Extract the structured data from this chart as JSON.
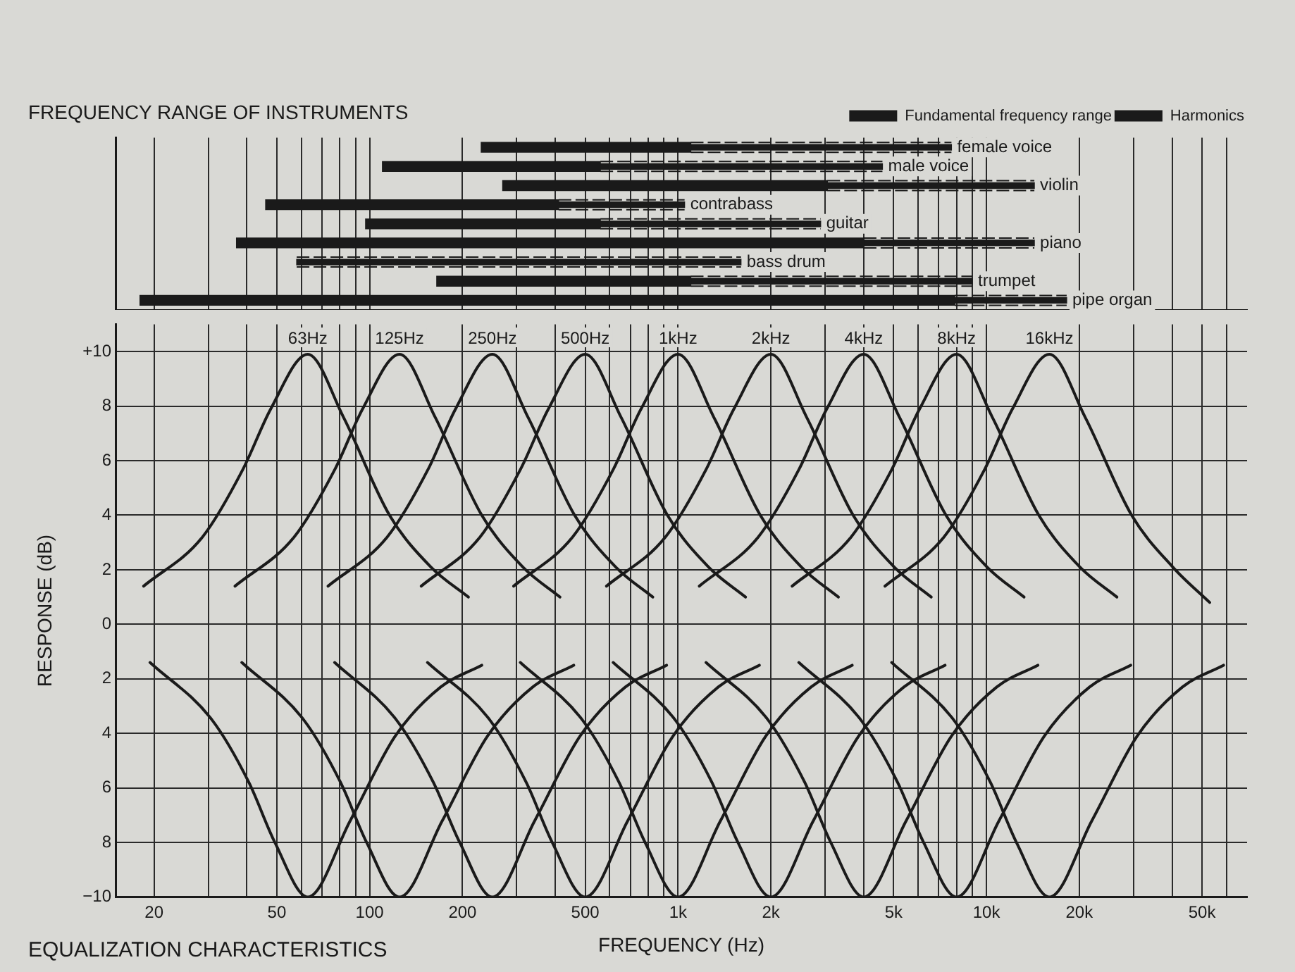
{
  "chart_data": [
    {
      "type": "bar",
      "orientation": "horizontal",
      "title": "FREQUENCY RANGE OF INSTRUMENTS",
      "legend": "top right",
      "grid": "x",
      "log": "x",
      "tick_labels": false,
      "categories": [
        "female voice",
        "male voice",
        "violin",
        "contrabass",
        "guitar",
        "piano",
        "bass drum",
        "trumpet",
        "pipe organ"
      ],
      "series": [
        {
          "name": "Fundamental frequency range",
          "color": "#1a1a1a",
          "base": [
            230,
            110,
            270,
            46,
            97,
            37,
            null,
            165,
            18
          ],
          "values": [
            870,
            450,
            2780,
            364,
            463,
            3963,
            null,
            935,
            7882
          ]
        },
        {
          "name": "Harmonics",
          "color": "#1a1a1a",
          "line_style": "dotted",
          "base": [
            1100,
            560,
            3050,
            410,
            560,
            4000,
            58,
            1100,
            7900
          ],
          "values": [
            6600,
            4040,
            11250,
            640,
            2340,
            10300,
            1542,
            7900,
            10300
          ]
        }
      ],
      "xlim": [
        15,
        70000
      ],
      "xticks": [
        20,
        30,
        40,
        50,
        60,
        70,
        80,
        90,
        100,
        200,
        300,
        400,
        500,
        600,
        700,
        800,
        900,
        1000,
        2000,
        3000,
        4000,
        5000,
        6000,
        7000,
        8000,
        9000,
        10000,
        20000,
        30000,
        40000,
        50000,
        60000
      ]
    },
    {
      "type": "line",
      "title": "EQUALIZATION CHARACTERISTICS",
      "xlabel": "FREQUENCY (Hz)",
      "ylabel": "RESPONSE (dB)",
      "grid": true,
      "log": "x",
      "legend": false,
      "marker": "none",
      "line_style": "solid",
      "xlim": [
        15,
        70000
      ],
      "ylim": [
        -10,
        11
      ],
      "xticks": [
        20,
        {
          "value": 30,
          "label": null
        },
        {
          "value": 40,
          "label": null
        },
        50,
        {
          "value": 60,
          "label": null
        },
        {
          "value": 70,
          "label": null
        },
        {
          "value": 80,
          "label": null
        },
        {
          "value": 90,
          "label": null
        },
        100,
        200,
        {
          "value": 300,
          "label": null
        },
        {
          "value": 400,
          "label": null
        },
        500,
        {
          "value": 600,
          "label": null
        },
        {
          "value": 700,
          "label": null
        },
        {
          "value": 800,
          "label": null
        },
        {
          "value": 900,
          "label": null
        },
        {
          "value": 1000,
          "label": "1k"
        },
        {
          "value": 2000,
          "label": "2k"
        },
        {
          "value": 3000,
          "label": null
        },
        {
          "value": 4000,
          "label": null
        },
        {
          "value": 5000,
          "label": "5k"
        },
        {
          "value": 6000,
          "label": null
        },
        {
          "value": 7000,
          "label": null
        },
        {
          "value": 8000,
          "label": null
        },
        {
          "value": 9000,
          "label": null
        },
        {
          "value": 10000,
          "label": "10k"
        },
        {
          "value": 20000,
          "label": "20k"
        },
        {
          "value": 30000,
          "label": null
        },
        {
          "value": 40000,
          "label": null
        },
        {
          "value": 50000,
          "label": "50k"
        },
        {
          "value": 60000,
          "label": null
        }
      ],
      "yticks": [
        {
          "value": -10,
          "label": "−10"
        },
        {
          "value": -8,
          "label": "8"
        },
        {
          "value": -6,
          "label": "6"
        },
        {
          "value": -4,
          "label": "4"
        },
        {
          "value": -2,
          "label": "2"
        },
        0,
        2,
        4,
        6,
        8,
        {
          "value": 10,
          "label": "+10"
        }
      ],
      "annotations": [
        {
          "text": "63Hz",
          "x": 63,
          "y": 10
        },
        {
          "text": "125Hz",
          "x": 125,
          "y": 10
        },
        {
          "text": "250Hz",
          "x": 250,
          "y": 10
        },
        {
          "text": "500Hz",
          "x": 500,
          "y": 10
        },
        {
          "text": "1kHz",
          "x": 1000,
          "y": 10
        },
        {
          "text": "2kHz",
          "x": 2000,
          "y": 10
        },
        {
          "text": "4kHz",
          "x": 4000,
          "y": 10
        },
        {
          "text": "8kHz",
          "x": 8000,
          "y": 10
        },
        {
          "text": "16kHz",
          "x": 16000,
          "y": 10
        }
      ],
      "series": [
        {
          "color": "#1a1a1a",
          "x": [
            18.5,
            28.7,
            38.9,
            47.8,
            63,
            82.2,
            116,
            158,
            209
          ],
          "values": [
            1.4,
            3.2,
            5.7,
            7.9,
            9.9,
            7.6,
            4.0,
            2.1,
            1.0
          ]
        },
        {
          "color": "#1a1a1a",
          "x": [
            36.6,
            56.9,
            77.3,
            94.9,
            125,
            163,
            231,
            314,
            414
          ],
          "values": [
            1.4,
            3.2,
            5.7,
            7.9,
            9.9,
            7.6,
            4.0,
            2.1,
            1.0
          ]
        },
        {
          "color": "#1a1a1a",
          "x": [
            73.3,
            114,
            155,
            190,
            250,
            326,
            462,
            628,
            828
          ],
          "values": [
            1.4,
            3.2,
            5.7,
            7.9,
            9.9,
            7.6,
            4.0,
            2.1,
            1.0
          ]
        },
        {
          "color": "#1a1a1a",
          "x": [
            147,
            228,
            309,
            380,
            500,
            653,
            924,
            1256,
            1655
          ],
          "values": [
            1.4,
            3.2,
            5.7,
            7.9,
            9.9,
            7.6,
            4.0,
            2.1,
            1.0
          ]
        },
        {
          "color": "#1a1a1a",
          "x": [
            293,
            455,
            618,
            759,
            1000,
            1305,
            1848,
            2512,
            3310
          ],
          "values": [
            1.4,
            3.2,
            5.7,
            7.9,
            9.9,
            7.6,
            4.0,
            2.1,
            1.0
          ]
        },
        {
          "color": "#1a1a1a",
          "x": [
            586,
            910,
            1236,
            1518,
            2000,
            2610,
            3696,
            5024,
            6620
          ],
          "values": [
            1.4,
            3.2,
            5.7,
            7.9,
            9.9,
            7.6,
            4.0,
            2.1,
            1.0
          ]
        },
        {
          "color": "#1a1a1a",
          "x": [
            1172,
            1820,
            2472,
            3036,
            4000,
            5220,
            7392,
            10048,
            13240
          ],
          "values": [
            1.4,
            3.2,
            5.7,
            7.9,
            9.9,
            7.6,
            4.0,
            2.1,
            1.0
          ]
        },
        {
          "color": "#1a1a1a",
          "x": [
            2344,
            3640,
            4944,
            6072,
            8000,
            10440,
            14784,
            20096,
            26480
          ],
          "values": [
            1.4,
            3.2,
            5.7,
            7.9,
            9.9,
            7.6,
            4.0,
            2.1,
            1.0
          ]
        },
        {
          "color": "#1a1a1a",
          "x": [
            4688,
            7280,
            9888,
            12144,
            16000,
            20880,
            29568,
            40192,
            52960
          ],
          "values": [
            1.4,
            3.2,
            5.7,
            7.9,
            9.9,
            7.6,
            4.0,
            2.1,
            0.8
          ]
        },
        {
          "color": "#1a1a1a",
          "x": [
            19.4,
            30.8,
            40.6,
            49.3,
            63,
            86.5,
            121,
            170,
            231
          ],
          "values": [
            -1.4,
            -3.5,
            -5.8,
            -8.0,
            -10,
            -7.2,
            -4.1,
            -2.3,
            -1.5
          ]
        },
        {
          "color": "#1a1a1a",
          "x": [
            38.5,
            61.1,
            80.5,
            97.8,
            125,
            172,
            241,
            338,
            459
          ],
          "values": [
            -1.4,
            -3.5,
            -5.8,
            -8.0,
            -10,
            -7.2,
            -4.1,
            -2.3,
            -1.5
          ]
        },
        {
          "color": "#1a1a1a",
          "x": [
            77,
            122,
            161,
            196,
            250,
            343,
            481,
            675,
            918
          ],
          "values": [
            -1.4,
            -3.5,
            -5.8,
            -8.0,
            -10,
            -7.2,
            -4.1,
            -2.3,
            -1.5
          ]
        },
        {
          "color": "#1a1a1a",
          "x": [
            154,
            245,
            322,
            391,
            500,
            687,
            963,
            1350,
            1835
          ],
          "values": [
            -1.4,
            -3.5,
            -5.8,
            -8.0,
            -10,
            -7.2,
            -4.1,
            -2.3,
            -1.5
          ]
        },
        {
          "color": "#1a1a1a",
          "x": [
            308,
            489,
            644,
            782,
            1000,
            1373,
            1925,
            2700,
            3670
          ],
          "values": [
            -1.4,
            -3.5,
            -5.8,
            -8.0,
            -10,
            -7.2,
            -4.1,
            -2.3,
            -1.5
          ]
        },
        {
          "color": "#1a1a1a",
          "x": [
            616,
            978,
            1288,
            1564,
            2000,
            2746,
            3850,
            5400,
            7340
          ],
          "values": [
            -1.4,
            -3.5,
            -5.8,
            -8.0,
            -10,
            -7.2,
            -4.1,
            -2.3,
            -1.5
          ]
        },
        {
          "color": "#1a1a1a",
          "x": [
            1232,
            1956,
            2576,
            3128,
            4000,
            5492,
            7700,
            10800,
            14680
          ],
          "values": [
            -1.4,
            -3.5,
            -5.8,
            -8.0,
            -10,
            -7.2,
            -4.1,
            -2.3,
            -1.5
          ]
        },
        {
          "color": "#1a1a1a",
          "x": [
            2464,
            3912,
            5152,
            6256,
            8000,
            10984,
            15400,
            21600,
            29360
          ],
          "values": [
            -1.4,
            -3.5,
            -5.8,
            -8.0,
            -10,
            -7.2,
            -4.1,
            -2.3,
            -1.5
          ]
        },
        {
          "color": "#1a1a1a",
          "x": [
            4928,
            7824,
            10304,
            12512,
            16000,
            21968,
            30800,
            43200,
            58720
          ],
          "values": [
            -1.4,
            -3.5,
            -5.8,
            -8.0,
            -10,
            -7.2,
            -4.1,
            -2.3,
            -1.5
          ]
        }
      ]
    }
  ]
}
